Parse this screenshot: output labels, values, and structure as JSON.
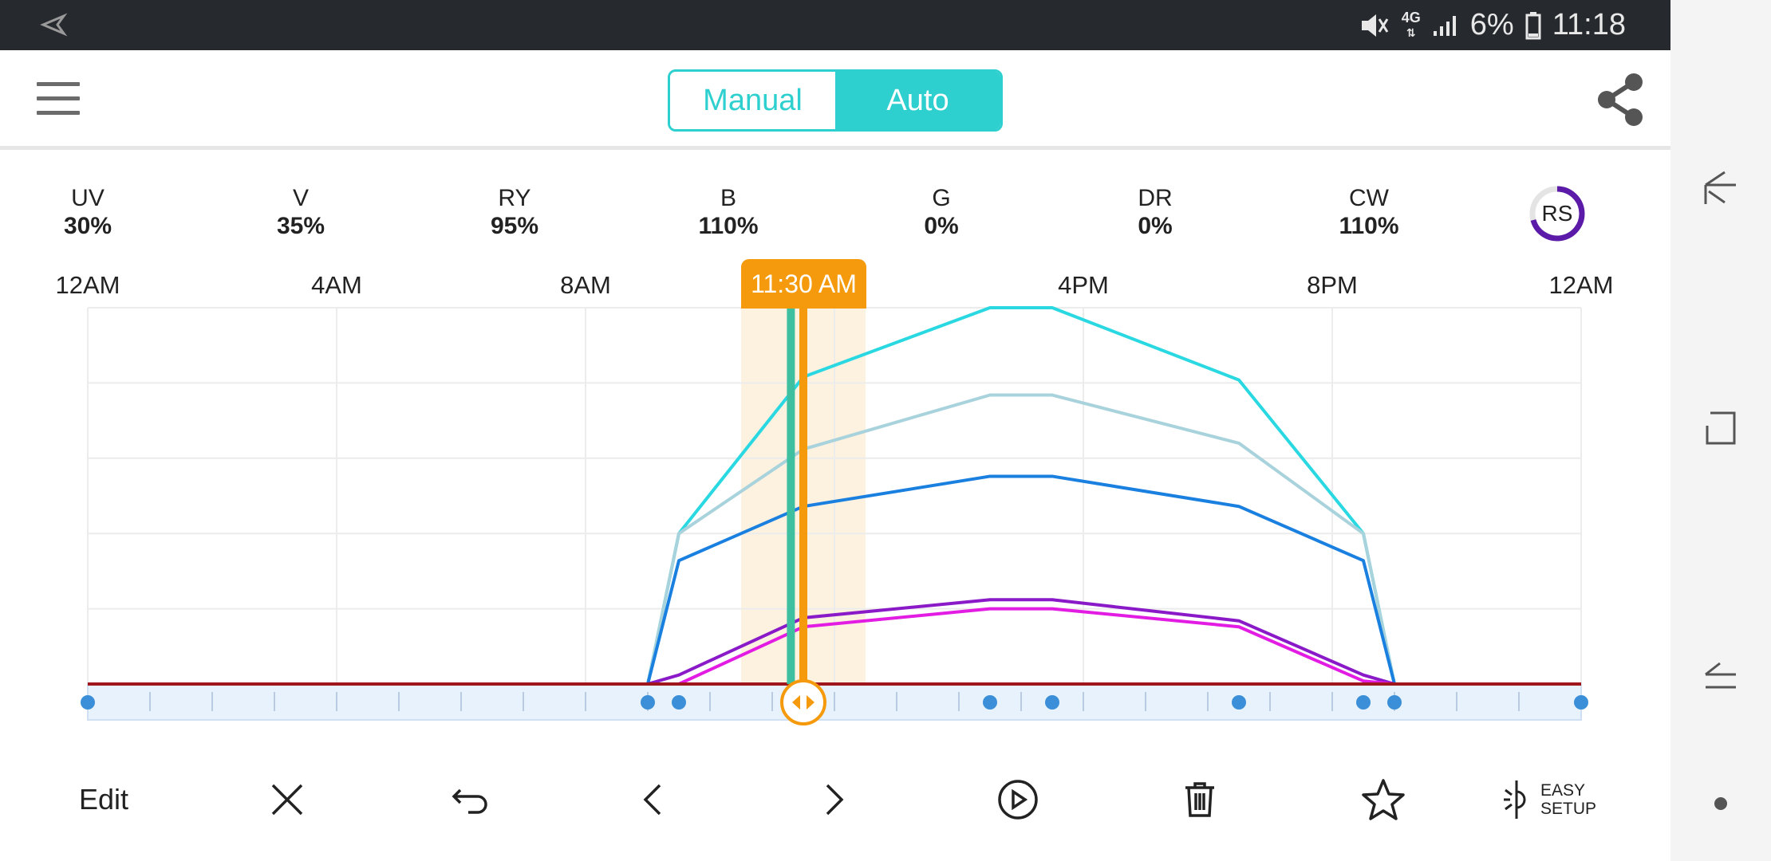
{
  "status_bar": {
    "network": "4G",
    "battery": "6%",
    "time": "11:18"
  },
  "mode_toggle": {
    "manual_label": "Manual",
    "auto_label": "Auto",
    "selected": "Auto"
  },
  "channels": [
    {
      "name": "UV",
      "value": "30%"
    },
    {
      "name": "V",
      "value": "35%"
    },
    {
      "name": "RY",
      "value": "95%"
    },
    {
      "name": "B",
      "value": "110%"
    },
    {
      "name": "G",
      "value": "0%"
    },
    {
      "name": "DR",
      "value": "0%"
    },
    {
      "name": "CW",
      "value": "110%"
    }
  ],
  "rs_badge": "RS",
  "timeline": {
    "hour_labels": [
      "12AM",
      "4AM",
      "8AM",
      "4PM",
      "8PM",
      "12AM"
    ],
    "current_time_label": "11:30 AM",
    "current_time_hours": 11.5,
    "teal_marker_hours": 11.3,
    "highlight_window_hours": [
      10.5,
      12.5
    ]
  },
  "chart_data": {
    "type": "line",
    "x_unit": "hour of day",
    "xlim": [
      0,
      24
    ],
    "ylim": [
      0,
      125
    ],
    "grid": true,
    "series": [
      {
        "color": "#2ad8e2",
        "x": [
          0,
          9,
          9.5,
          11.5,
          14.5,
          15.5,
          18.5,
          20.5,
          21,
          24
        ],
        "y": [
          0,
          0,
          50,
          102,
          125,
          125,
          101,
          50,
          0,
          0
        ]
      },
      {
        "color": "#a8d3dc",
        "x": [
          0,
          9,
          9.5,
          11.5,
          14.5,
          15.5,
          18.5,
          20.5,
          21,
          24
        ],
        "y": [
          0,
          0,
          50,
          78,
          96,
          96,
          80,
          50,
          0,
          0
        ]
      },
      {
        "color": "#1a80e0",
        "x": [
          0,
          9,
          9.5,
          11.5,
          14.5,
          15.5,
          18.5,
          20.5,
          21,
          24
        ],
        "y": [
          0,
          0,
          41,
          59,
          69,
          69,
          59,
          41,
          0,
          0
        ]
      },
      {
        "color": "#8a1ac8",
        "x": [
          0,
          9,
          9.5,
          11.5,
          14.5,
          15.5,
          18.5,
          20.5,
          21,
          24
        ],
        "y": [
          0,
          0,
          3,
          22,
          28,
          28,
          21,
          3,
          0,
          0
        ]
      },
      {
        "color": "#e21ce2",
        "x": [
          0,
          9,
          9.5,
          11.5,
          14.5,
          15.5,
          18.5,
          20.5,
          21,
          24
        ],
        "y": [
          0,
          0,
          0,
          19,
          25,
          25,
          19,
          1,
          0,
          0
        ]
      },
      {
        "color": "#a0161c",
        "x": [
          0,
          9,
          21,
          24
        ],
        "y": [
          0,
          0,
          0,
          0
        ]
      }
    ],
    "keyframes_hours": [
      0,
      9,
      9.5,
      14.5,
      15.5,
      18.5,
      20.5,
      21,
      24
    ]
  },
  "toolbar": {
    "edit_label": "Edit",
    "easy_setup_line1": "EASY",
    "easy_setup_line2": "SETUP"
  },
  "icons": {
    "status_nav": "navigation-arrow-icon",
    "mute": "mute-icon",
    "signal": "signal-icon",
    "battery": "battery-icon",
    "menu": "hamburger-menu-icon",
    "share": "share-icon",
    "close": "close-icon",
    "undo": "undo-icon",
    "prev": "chevron-left-icon",
    "next": "chevron-right-icon",
    "play": "play-circle-icon",
    "delete": "trash-icon",
    "favorite": "star-icon",
    "easy_setup": "easy-setup-icon",
    "sys_back": "back-icon",
    "sys_home": "home-icon",
    "sys_recents": "recents-icon"
  },
  "colors": {
    "accent_teal": "#2ecfcf",
    "time_marker": "#f59a0c",
    "rs_ring": "#5b1aa8",
    "keyframe_dot": "#3a8fd8"
  }
}
